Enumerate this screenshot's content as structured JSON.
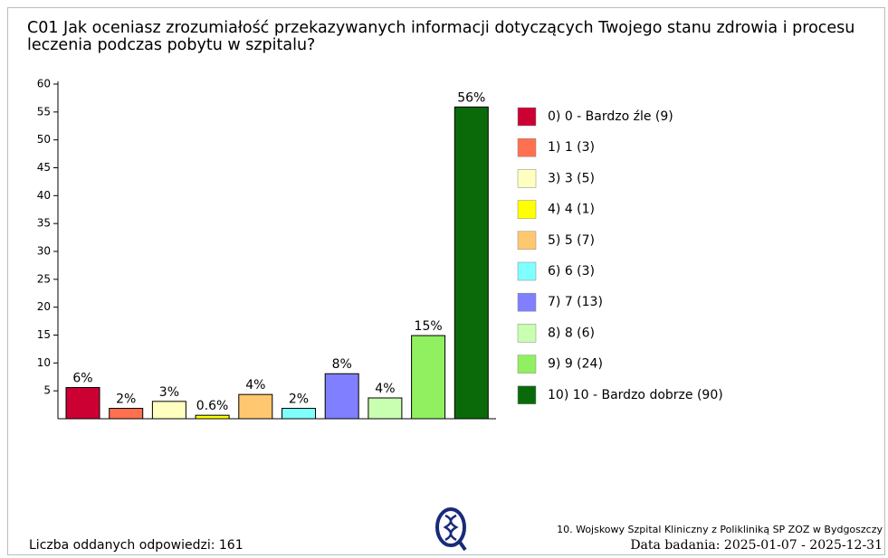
{
  "chart_data": {
    "type": "bar",
    "title": "C01 Jak oceniasz zrozumiałość przekazywanych informacji dotyczących Twojego stanu zdrowia i procesu leczenia podczas pobytu w szpitalu?",
    "categories": [
      "0) 0 - Bardzo źle (9)",
      "1) 1 (3)",
      "3) 3 (5)",
      "4) 4 (1)",
      "5) 5 (7)",
      "6) 6 (3)",
      "7) 7 (13)",
      "8) 8 (6)",
      "9) 9 (24)",
      "10) 10 - Bardzo dobrze (90)"
    ],
    "values": [
      5.59,
      1.86,
      3.11,
      0.62,
      4.35,
      1.86,
      8.07,
      3.73,
      14.91,
      55.9
    ],
    "value_labels": [
      "6%",
      "2%",
      "3%",
      "0.6%",
      "4%",
      "2%",
      "8%",
      "4%",
      "15%",
      "56%"
    ],
    "colors": [
      "#cc0033",
      "#ff7050",
      "#ffffc0",
      "#ffff00",
      "#ffc870",
      "#80ffff",
      "#7f7fff",
      "#c8ffb0",
      "#90f060",
      "#0a6a0a"
    ],
    "ylim": [
      0,
      60
    ],
    "yticks": [
      5,
      10,
      15,
      20,
      25,
      30,
      35,
      40,
      45,
      50,
      55,
      60
    ],
    "legend": "right"
  },
  "footer": {
    "responses": "Liczba oddanych odpowiedzi: 161",
    "institution": "10. Wojskowy Szpital Kliniczny z Polikliniką SP ZOZ w Bydgoszczy",
    "date": "Data badania: 2025-01-07 - 2025-12-31"
  }
}
